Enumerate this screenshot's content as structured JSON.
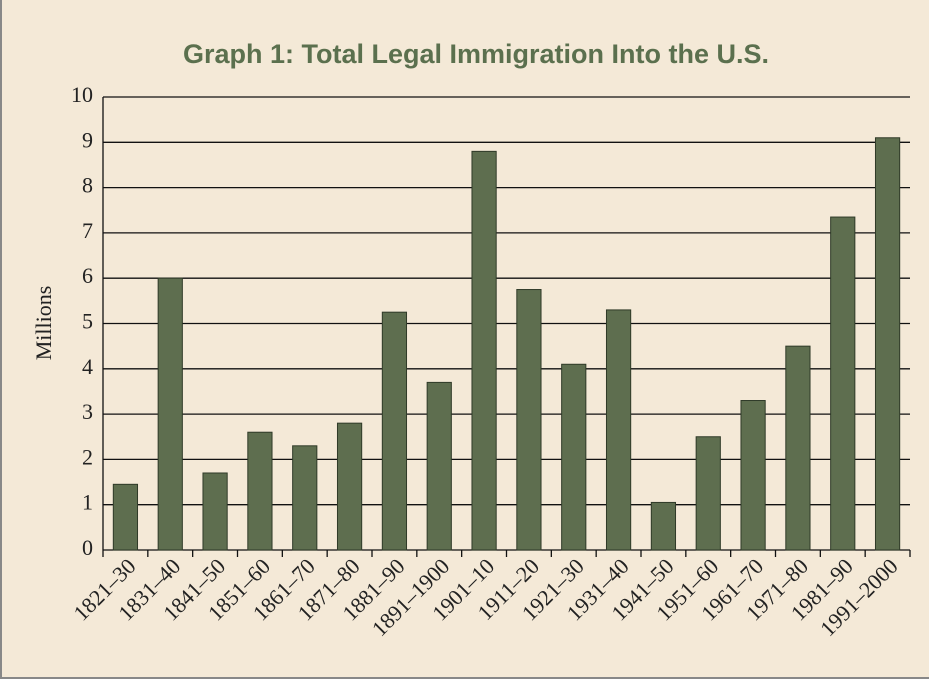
{
  "chart_data": {
    "type": "bar",
    "title": "Graph 1: Total Legal Immigration Into the U.S.",
    "y_label": "Millions",
    "categories": [
      "1821–30",
      "1831–40",
      "1841–50",
      "1851–60",
      "1861–70",
      "1871–80",
      "1881–90",
      "1891–1900",
      "1901–10",
      "1911–20",
      "1921–30",
      "1931–40",
      "1941–50",
      "1951–60",
      "1961–70",
      "1971–80",
      "1981–90",
      "1991–2000"
    ],
    "values": [
      1.45,
      6.0,
      1.7,
      2.6,
      2.3,
      2.8,
      5.25,
      3.7,
      8.8,
      5.75,
      4.1,
      5.3,
      1.05,
      2.5,
      3.3,
      4.5,
      7.35,
      9.1
    ],
    "color": "#5e6e4f",
    "ylim": [
      0,
      10
    ],
    "yticks": [
      0,
      1,
      2,
      3,
      4,
      5,
      6,
      7,
      8,
      9,
      10
    ],
    "grid": true
  }
}
